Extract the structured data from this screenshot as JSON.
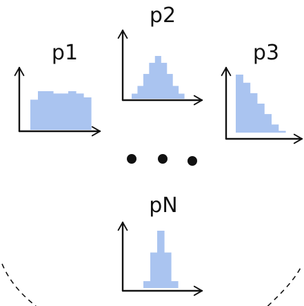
{
  "colors": {
    "histogram_fill": "#aac4f0",
    "axes": "#111111",
    "dashed_boundary": "#111111"
  },
  "ellipsis_icon": "three-dots",
  "plots": [
    {
      "id": "p1",
      "label": "p1",
      "shape": "uniform",
      "bin_heights": [
        0.78,
        1.0,
        1.0,
        0.94,
        0.94,
        1.0,
        0.94,
        0.84
      ]
    },
    {
      "id": "p2",
      "label": "p2",
      "shape": "bell",
      "bin_heights": [
        0.12,
        0.3,
        0.58,
        0.84,
        1.0,
        0.84,
        0.58,
        0.3,
        0.12
      ]
    },
    {
      "id": "p3",
      "label": "p3",
      "shape": "decaying",
      "bin_heights": [
        1.0,
        0.86,
        0.68,
        0.5,
        0.32,
        0.14,
        0.03
      ]
    },
    {
      "id": "pN",
      "label": "pN",
      "shape": "narrow",
      "bin_heights": [
        0.12,
        0.62,
        1.0,
        0.62,
        0.12
      ]
    }
  ]
}
